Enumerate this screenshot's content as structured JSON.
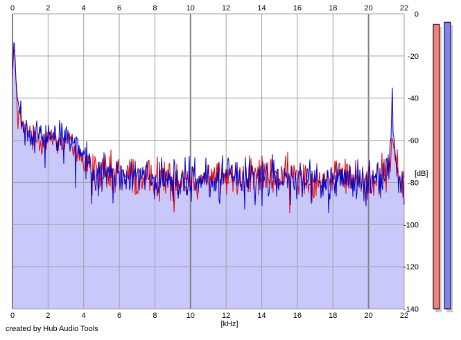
{
  "credit": "created by Hub Audio Tools",
  "chart_data": {
    "type": "area",
    "xlabel": "[kHz]",
    "ylabel": "[dB]",
    "xlim": [
      0,
      22
    ],
    "ylim": [
      -140,
      0
    ],
    "x_ticks": [
      "0",
      "2",
      "4",
      "6",
      "8",
      "10",
      "12",
      "14",
      "16",
      "18",
      "20",
      "22"
    ],
    "y_ticks": [
      "0",
      "-20",
      "-40",
      "-60",
      "-80",
      "-100",
      "-120",
      "-140"
    ],
    "grid": true,
    "series": [
      {
        "color": "#e00000",
        "x": [
          0.0,
          0.1,
          0.2,
          0.3,
          0.5,
          0.75,
          1.0,
          1.5,
          2.0,
          2.5,
          3.0,
          3.5,
          3.75,
          4.0,
          4.25,
          4.5,
          5.0,
          5.5,
          6.0,
          7.0,
          8.0,
          9.0,
          10.0,
          11.0,
          12.0,
          13.0,
          14.0,
          15.0,
          16.0,
          17.0,
          18.0,
          19.0,
          20.0,
          20.5,
          21.0,
          21.2,
          21.35,
          21.45,
          21.55,
          21.7,
          22.0
        ],
        "values": [
          -28,
          -14,
          -34,
          -44,
          -52,
          -56,
          -57,
          -59,
          -59,
          -59,
          -61,
          -63,
          -66,
          -70,
          -73,
          -74,
          -75,
          -76,
          -76,
          -77,
          -77,
          -78,
          -78,
          -78,
          -77,
          -77,
          -77,
          -77,
          -77,
          -77,
          -78,
          -78,
          -79,
          -78,
          -76,
          -72,
          -56,
          -62,
          -72,
          -78,
          -81
        ]
      },
      {
        "color": "#0000c8",
        "x": [
          0.0,
          0.1,
          0.2,
          0.3,
          0.5,
          0.75,
          1.0,
          1.5,
          2.0,
          2.5,
          3.0,
          3.5,
          3.75,
          4.0,
          4.25,
          4.5,
          5.0,
          5.5,
          6.0,
          7.0,
          8.0,
          9.0,
          10.0,
          11.0,
          12.0,
          13.0,
          14.0,
          15.0,
          16.0,
          17.0,
          18.0,
          19.0,
          20.0,
          20.5,
          21.0,
          21.2,
          21.35,
          21.45,
          21.55,
          21.7,
          22.0
        ],
        "values": [
          -25,
          -12,
          -31,
          -41,
          -50,
          -55,
          -57,
          -58,
          -58,
          -57,
          -58,
          -60,
          -63,
          -68,
          -71,
          -73,
          -75,
          -76,
          -77,
          -78,
          -78,
          -79,
          -79,
          -79,
          -78,
          -78,
          -78,
          -78,
          -78,
          -78,
          -79,
          -79,
          -80,
          -79,
          -77,
          -70,
          -44,
          -60,
          -72,
          -79,
          -82
        ]
      }
    ],
    "meters": [
      {
        "color": "#f08080",
        "value": -5
      },
      {
        "color": "#8080f0",
        "value": -4
      }
    ]
  }
}
